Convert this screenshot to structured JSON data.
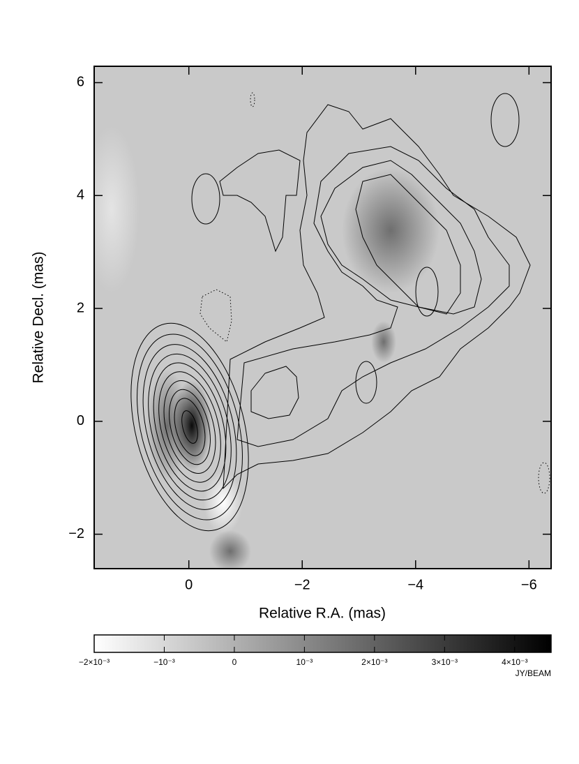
{
  "chart_data": {
    "type": "contour",
    "x_label": "Relative R.A. (mas)",
    "y_label": "Relative Decl. (mas)",
    "xlim": [
      1.67,
      -6.39
    ],
    "ylim": [
      -2.61,
      6.29
    ],
    "xticks": [
      0,
      {
        "value": -2,
        "label": "−2"
      },
      {
        "value": -4,
        "label": "−4"
      },
      {
        "value": -6,
        "label": "−6"
      }
    ],
    "yticks": [
      {
        "value": -2,
        "label": "−2"
      },
      0,
      2,
      4,
      6
    ],
    "colorbar": {
      "lim": [
        -0.002,
        0.00452
      ],
      "colors": [
        "#ffffff",
        "#000000"
      ],
      "unit": "JY/BEAM",
      "ticks": [
        {
          "value": -0.002,
          "label": "−2×10⁻³"
        },
        {
          "value": -0.001,
          "label": "−10⁻³"
        },
        0,
        {
          "value": 0.001,
          "label": "10⁻³"
        },
        {
          "value": 0.002,
          "label": "2×10⁻³"
        },
        {
          "value": 0.003,
          "label": "3×10⁻³"
        },
        {
          "value": 0.004,
          "label": "4×10⁻³"
        }
      ]
    }
  }
}
